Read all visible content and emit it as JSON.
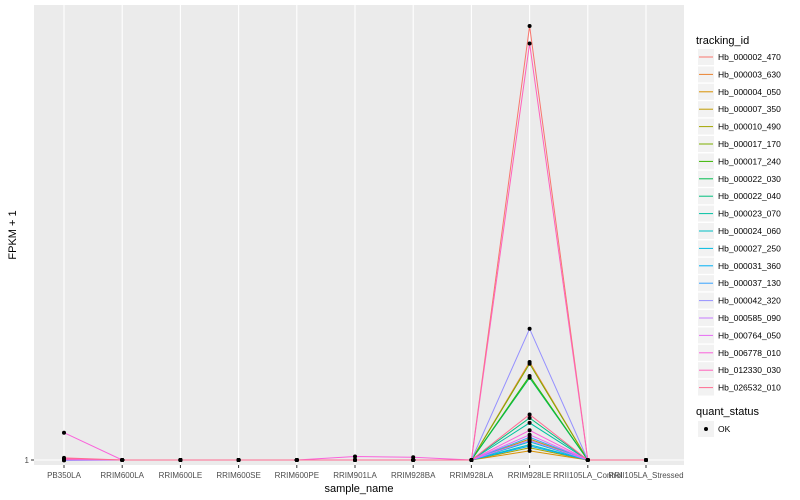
{
  "chart_data": {
    "type": "line",
    "xlabel": "sample_name",
    "ylabel": "FPKM + 1",
    "y_tick_labels": [
      "1"
    ],
    "categories": [
      "PB350LA",
      "RRIM600LA",
      "RRIM600LE",
      "RRIM600SE",
      "RRIM600PE",
      "RRIM901LA",
      "RRIM928BA",
      "RRIM928LA",
      "RRIM928LE",
      "RRII105LA_Control",
      "RRII105LA_Stressed"
    ],
    "ylim": [
      0.95,
      14.0
    ],
    "grid": true,
    "legend_position": "right",
    "legend_title": "tracking_id",
    "series": [
      {
        "name": "Hb_000002_470",
        "color": "#F8766D",
        "values": [
          1.02,
          1.0,
          1.0,
          1.0,
          1.0,
          1.0,
          1.0,
          1.0,
          13.4,
          1.0,
          1.0
        ]
      },
      {
        "name": "Hb_000003_630",
        "color": "#EA8331",
        "values": [
          1.0,
          1.0,
          1.0,
          1.0,
          1.0,
          1.0,
          1.0,
          1.0,
          3.8,
          1.0,
          1.0
        ]
      },
      {
        "name": "Hb_000004_050",
        "color": "#D89000",
        "values": [
          1.0,
          1.0,
          1.0,
          1.0,
          1.0,
          1.0,
          1.0,
          1.0,
          1.26,
          1.0,
          1.0
        ]
      },
      {
        "name": "Hb_000007_350",
        "color": "#C09B00",
        "values": [
          1.0,
          1.0,
          1.0,
          1.0,
          1.0,
          1.0,
          1.0,
          1.0,
          1.6,
          1.0,
          1.0
        ]
      },
      {
        "name": "Hb_000010_490",
        "color": "#A3A500",
        "values": [
          1.0,
          1.0,
          1.0,
          1.0,
          1.0,
          1.0,
          1.0,
          1.0,
          1.35,
          1.0,
          1.0
        ]
      },
      {
        "name": "Hb_000017_170",
        "color": "#7CAE00",
        "values": [
          1.0,
          1.0,
          1.0,
          1.0,
          1.0,
          1.0,
          1.0,
          1.0,
          3.75,
          1.0,
          1.0
        ]
      },
      {
        "name": "Hb_000017_240",
        "color": "#39B600",
        "values": [
          1.0,
          1.0,
          1.0,
          1.0,
          1.0,
          1.0,
          1.0,
          1.0,
          3.4,
          1.0,
          1.0
        ]
      },
      {
        "name": "Hb_000022_030",
        "color": "#00BB4E",
        "values": [
          1.0,
          1.0,
          1.0,
          1.0,
          1.0,
          1.0,
          1.0,
          1.0,
          3.35,
          1.0,
          1.0
        ]
      },
      {
        "name": "Hb_000022_040",
        "color": "#00BF7D",
        "values": [
          1.0,
          1.0,
          1.0,
          1.0,
          1.0,
          1.0,
          1.0,
          1.0,
          2.2,
          1.0,
          1.0
        ]
      },
      {
        "name": "Hb_000023_070",
        "color": "#00C1A3",
        "values": [
          1.0,
          1.0,
          1.0,
          1.0,
          1.0,
          1.0,
          1.0,
          1.0,
          2.06,
          1.0,
          1.0
        ]
      },
      {
        "name": "Hb_000024_060",
        "color": "#00BFC4",
        "values": [
          1.0,
          1.0,
          1.0,
          1.0,
          1.0,
          1.0,
          1.0,
          1.0,
          1.44,
          1.0,
          1.0
        ]
      },
      {
        "name": "Hb_000027_250",
        "color": "#00BAE0",
        "values": [
          1.0,
          1.0,
          1.0,
          1.0,
          1.0,
          1.0,
          1.0,
          1.0,
          1.52,
          1.0,
          1.0
        ]
      },
      {
        "name": "Hb_000031_360",
        "color": "#00B0F6",
        "values": [
          1.0,
          1.0,
          1.0,
          1.0,
          1.0,
          1.0,
          1.0,
          1.0,
          1.4,
          1.0,
          1.0
        ]
      },
      {
        "name": "Hb_000037_130",
        "color": "#35A2FF",
        "values": [
          0.99,
          1.0,
          1.0,
          1.0,
          1.0,
          1.0,
          1.0,
          1.0,
          1.65,
          1.0,
          1.0
        ]
      },
      {
        "name": "Hb_000042_320",
        "color": "#9590FF",
        "values": [
          1.0,
          1.0,
          1.0,
          1.0,
          1.0,
          1.0,
          1.0,
          1.0,
          4.75,
          1.0,
          1.0
        ]
      },
      {
        "name": "Hb_000585_090",
        "color": "#C77CFF",
        "values": [
          1.0,
          1.0,
          1.0,
          1.0,
          1.0,
          1.0,
          1.0,
          1.0,
          1.56,
          1.0,
          1.0
        ]
      },
      {
        "name": "Hb_000764_050",
        "color": "#E76BF3",
        "values": [
          1.0,
          1.0,
          1.0,
          1.0,
          1.0,
          1.0,
          1.0,
          1.0,
          1.72,
          1.0,
          1.0
        ]
      },
      {
        "name": "Hb_006778_010",
        "color": "#FA62DB",
        "values": [
          1.78,
          1.0,
          1.0,
          1.0,
          1.0,
          1.1,
          1.08,
          1.0,
          1.85,
          1.0,
          1.0
        ]
      },
      {
        "name": "Hb_012330_030",
        "color": "#FF62BC",
        "values": [
          1.04,
          1.0,
          1.0,
          1.0,
          1.0,
          1.0,
          1.0,
          1.0,
          12.9,
          1.0,
          1.0
        ]
      },
      {
        "name": "Hb_026532_010",
        "color": "#FF6C91",
        "values": [
          1.06,
          1.0,
          1.0,
          1.0,
          1.0,
          1.0,
          1.0,
          1.0,
          2.3,
          1.0,
          1.0
        ]
      }
    ],
    "shape_legend": {
      "title": "quant_status",
      "entries": [
        "OK"
      ]
    }
  }
}
